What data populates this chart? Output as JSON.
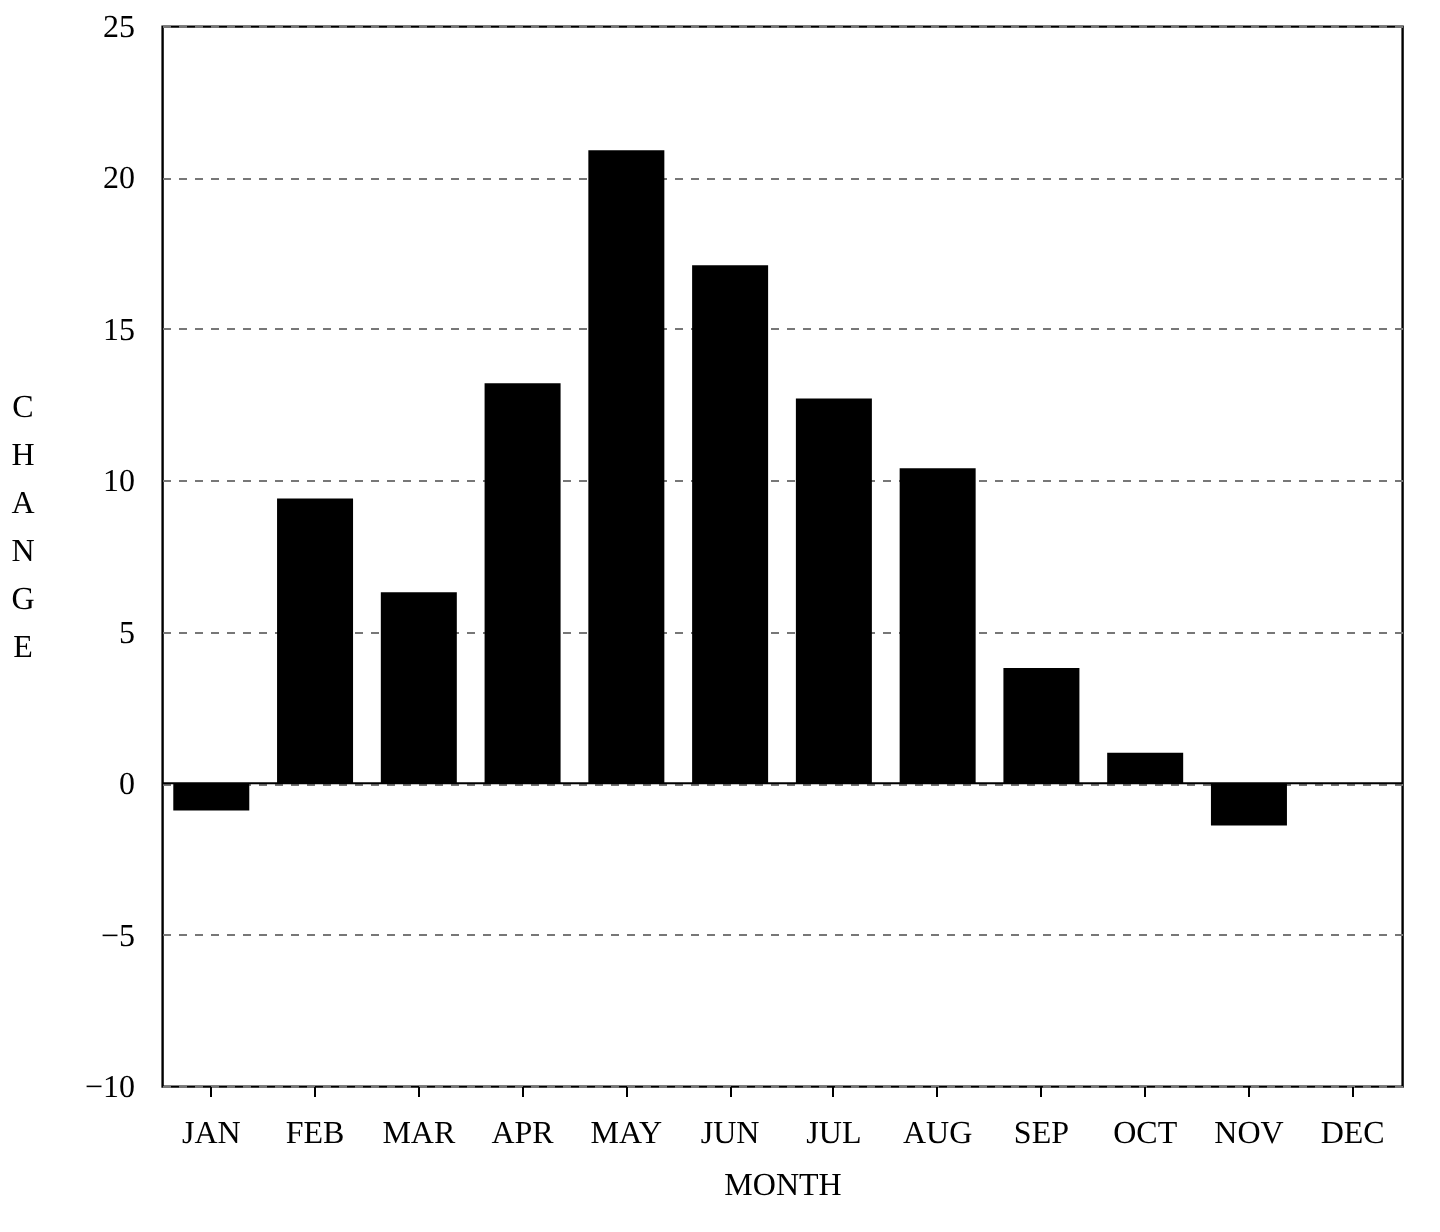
{
  "chart_data": {
    "type": "bar",
    "xlabel": "MONTH",
    "ylabel": "CHANGE",
    "categories": [
      "JAN",
      "FEB",
      "MAR",
      "APR",
      "MAY",
      "JUN",
      "JUL",
      "AUG",
      "SEP",
      "OCT",
      "NOV",
      "DEC"
    ],
    "values": [
      -0.9,
      9.4,
      6.3,
      13.2,
      20.9,
      17.1,
      12.7,
      10.4,
      3.8,
      1.0,
      -1.4,
      0
    ],
    "color": "#000000",
    "ylim": [
      -10,
      25
    ],
    "yticks": [
      -10,
      -5,
      0,
      5,
      10,
      15,
      20,
      25
    ],
    "grid": "y",
    "line_style": "dashed"
  }
}
